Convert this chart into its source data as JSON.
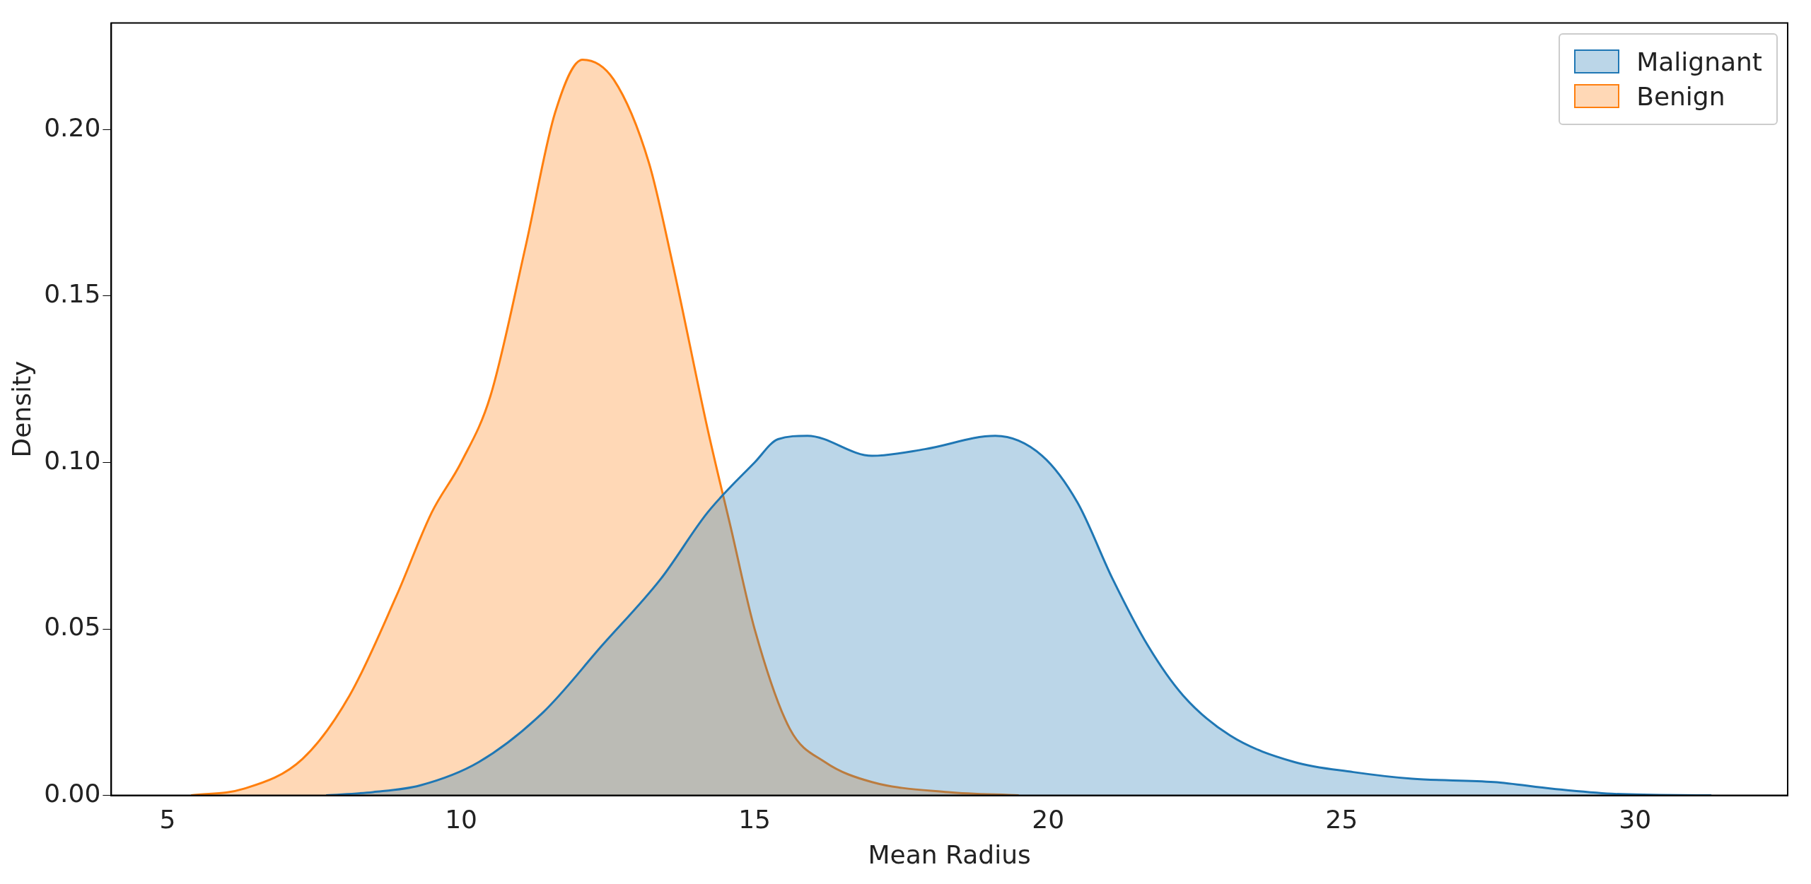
{
  "chart_data": {
    "type": "area",
    "xlabel": "Mean Radius",
    "ylabel": "Density",
    "xlim": [
      4.04,
      32.6
    ],
    "ylim": [
      0,
      0.232
    ],
    "xticks": [
      5,
      10,
      15,
      20,
      25,
      30
    ],
    "yticks": [
      {
        "value": 0,
        "label": "0.00"
      },
      {
        "value": 0.05,
        "label": "0.05"
      },
      {
        "value": 0.1,
        "label": "0.10"
      },
      {
        "value": 0.15,
        "label": "0.15"
      },
      {
        "value": 0.2,
        "label": "0.20"
      }
    ],
    "grid": false,
    "legend": "top right",
    "marker": "none",
    "line_style": "solid",
    "series": [
      {
        "name": "Malignant",
        "color": "#1f77b4",
        "x": [
          7.7,
          8.5,
          9.3,
          10.3,
          11.4,
          12.4,
          13.4,
          14.2,
          15.0,
          15.4,
          15.9,
          17.0,
          17.9,
          19.1,
          19.9,
          20.5,
          21.1,
          21.7,
          22.3,
          23.1,
          24.2,
          25.2,
          26.2,
          27.6,
          28.6,
          29.6,
          31.3
        ],
        "values": [
          0,
          0.001,
          0.003,
          0.01,
          0.025,
          0.045,
          0.065,
          0.085,
          0.1,
          0.107,
          0.108,
          0.102,
          0.104,
          0.108,
          0.102,
          0.088,
          0.065,
          0.045,
          0.03,
          0.018,
          0.01,
          0.007,
          0.005,
          0.004,
          0.002,
          0.0005,
          0
        ]
      },
      {
        "name": "Benign",
        "color": "#ff7f0e",
        "x": [
          5.4,
          6.3,
          7.3,
          8.1,
          8.9,
          9.5,
          10.0,
          10.5,
          11.1,
          11.6,
          12.07,
          12.6,
          13.2,
          13.6,
          14.2,
          14.6,
          15.0,
          15.6,
          16.2,
          17.0,
          18.3,
          19.5
        ],
        "values": [
          0,
          0.002,
          0.011,
          0.03,
          0.06,
          0.085,
          0.1,
          0.12,
          0.165,
          0.205,
          0.221,
          0.215,
          0.19,
          0.16,
          0.11,
          0.08,
          0.05,
          0.02,
          0.01,
          0.004,
          0.001,
          0
        ]
      }
    ]
  }
}
